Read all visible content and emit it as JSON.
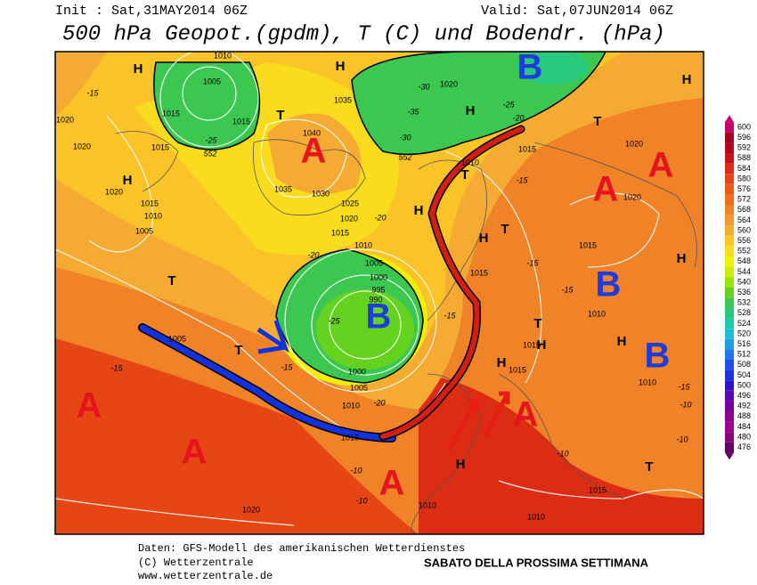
{
  "header": {
    "init": "Init : Sat,31MAY2014 06Z",
    "valid": "Valid: Sat,07JUN2014 06Z",
    "title": "500 hPa Geopot.(gpdm), T (C) und Bodendr. (hPa)"
  },
  "colorbar": {
    "levels": [
      600,
      596,
      592,
      588,
      584,
      580,
      576,
      572,
      568,
      564,
      560,
      556,
      552,
      548,
      544,
      540,
      536,
      532,
      528,
      524,
      520,
      516,
      512,
      508,
      504,
      500,
      496,
      492,
      488,
      484,
      480,
      476
    ],
    "colors": [
      "#c8006e",
      "#a0001e",
      "#b4001e",
      "#c81414",
      "#dc2d14",
      "#e64614",
      "#eb5a14",
      "#f06e1e",
      "#f08228",
      "#f59632",
      "#f5aa32",
      "#fac328",
      "#fadc1e",
      "#f0f000",
      "#c8f000",
      "#96e600",
      "#64d21e",
      "#3cc850",
      "#28c87d",
      "#1ec8aa",
      "#1ebed2",
      "#1ea0e6",
      "#1e78f0",
      "#1e50f0",
      "#1e32dc",
      "#3214c8",
      "#5a0ab4",
      "#7800a0",
      "#8c0096",
      "#a0008c",
      "#8c0078",
      "#640064"
    ]
  },
  "map": {
    "high_labels": [
      "A",
      "A",
      "A",
      "A",
      "A",
      "A",
      "A"
    ],
    "low_labels": [
      "B",
      "B",
      "B",
      "B"
    ],
    "h_marks": [
      "H",
      "H",
      "H",
      "H",
      "H",
      "H",
      "H",
      "H",
      "H",
      "H",
      "H",
      "H"
    ],
    "t_marks": [
      "T",
      "T",
      "T",
      "T",
      "T",
      "T",
      "T",
      "T"
    ],
    "isobar_labels": [
      "1010",
      "1005",
      "1015",
      "1015",
      "1040",
      "1035",
      "1030",
      "1025",
      "1020",
      "1015",
      "1010",
      "1005",
      "1000",
      "995",
      "990",
      "1000",
      "1005",
      "1010",
      "1015",
      "1020",
      "1005",
      "1020",
      "1020",
      "1015",
      "1020",
      "1015",
      "1010",
      "1005",
      "1035",
      "1020",
      "1015",
      "1010",
      "1015",
      "1015",
      "1020",
      "1020",
      "1010",
      "1015",
      "1015",
      "1010",
      "1015",
      "1010",
      "1010"
    ],
    "temperature_labels": [
      "-15",
      "-25",
      "-30",
      "-35",
      "-25",
      "-20",
      "-30",
      "-20",
      "-20",
      "-25",
      "-15",
      "-15",
      "-15",
      "-20",
      "-15",
      "-15",
      "-15",
      "-10",
      "-10",
      "-10",
      "-10",
      "-10",
      "-15",
      "552",
      "552"
    ]
  },
  "footer": {
    "source": "Daten: GFS-Modell des amerikanischen Wetterdienstes",
    "copyright": "(C) Wetterzentrale",
    "url": "www.wetterzentrale.de",
    "caption": "SABATO DELLA PROSSIMA SETTIMANA"
  }
}
